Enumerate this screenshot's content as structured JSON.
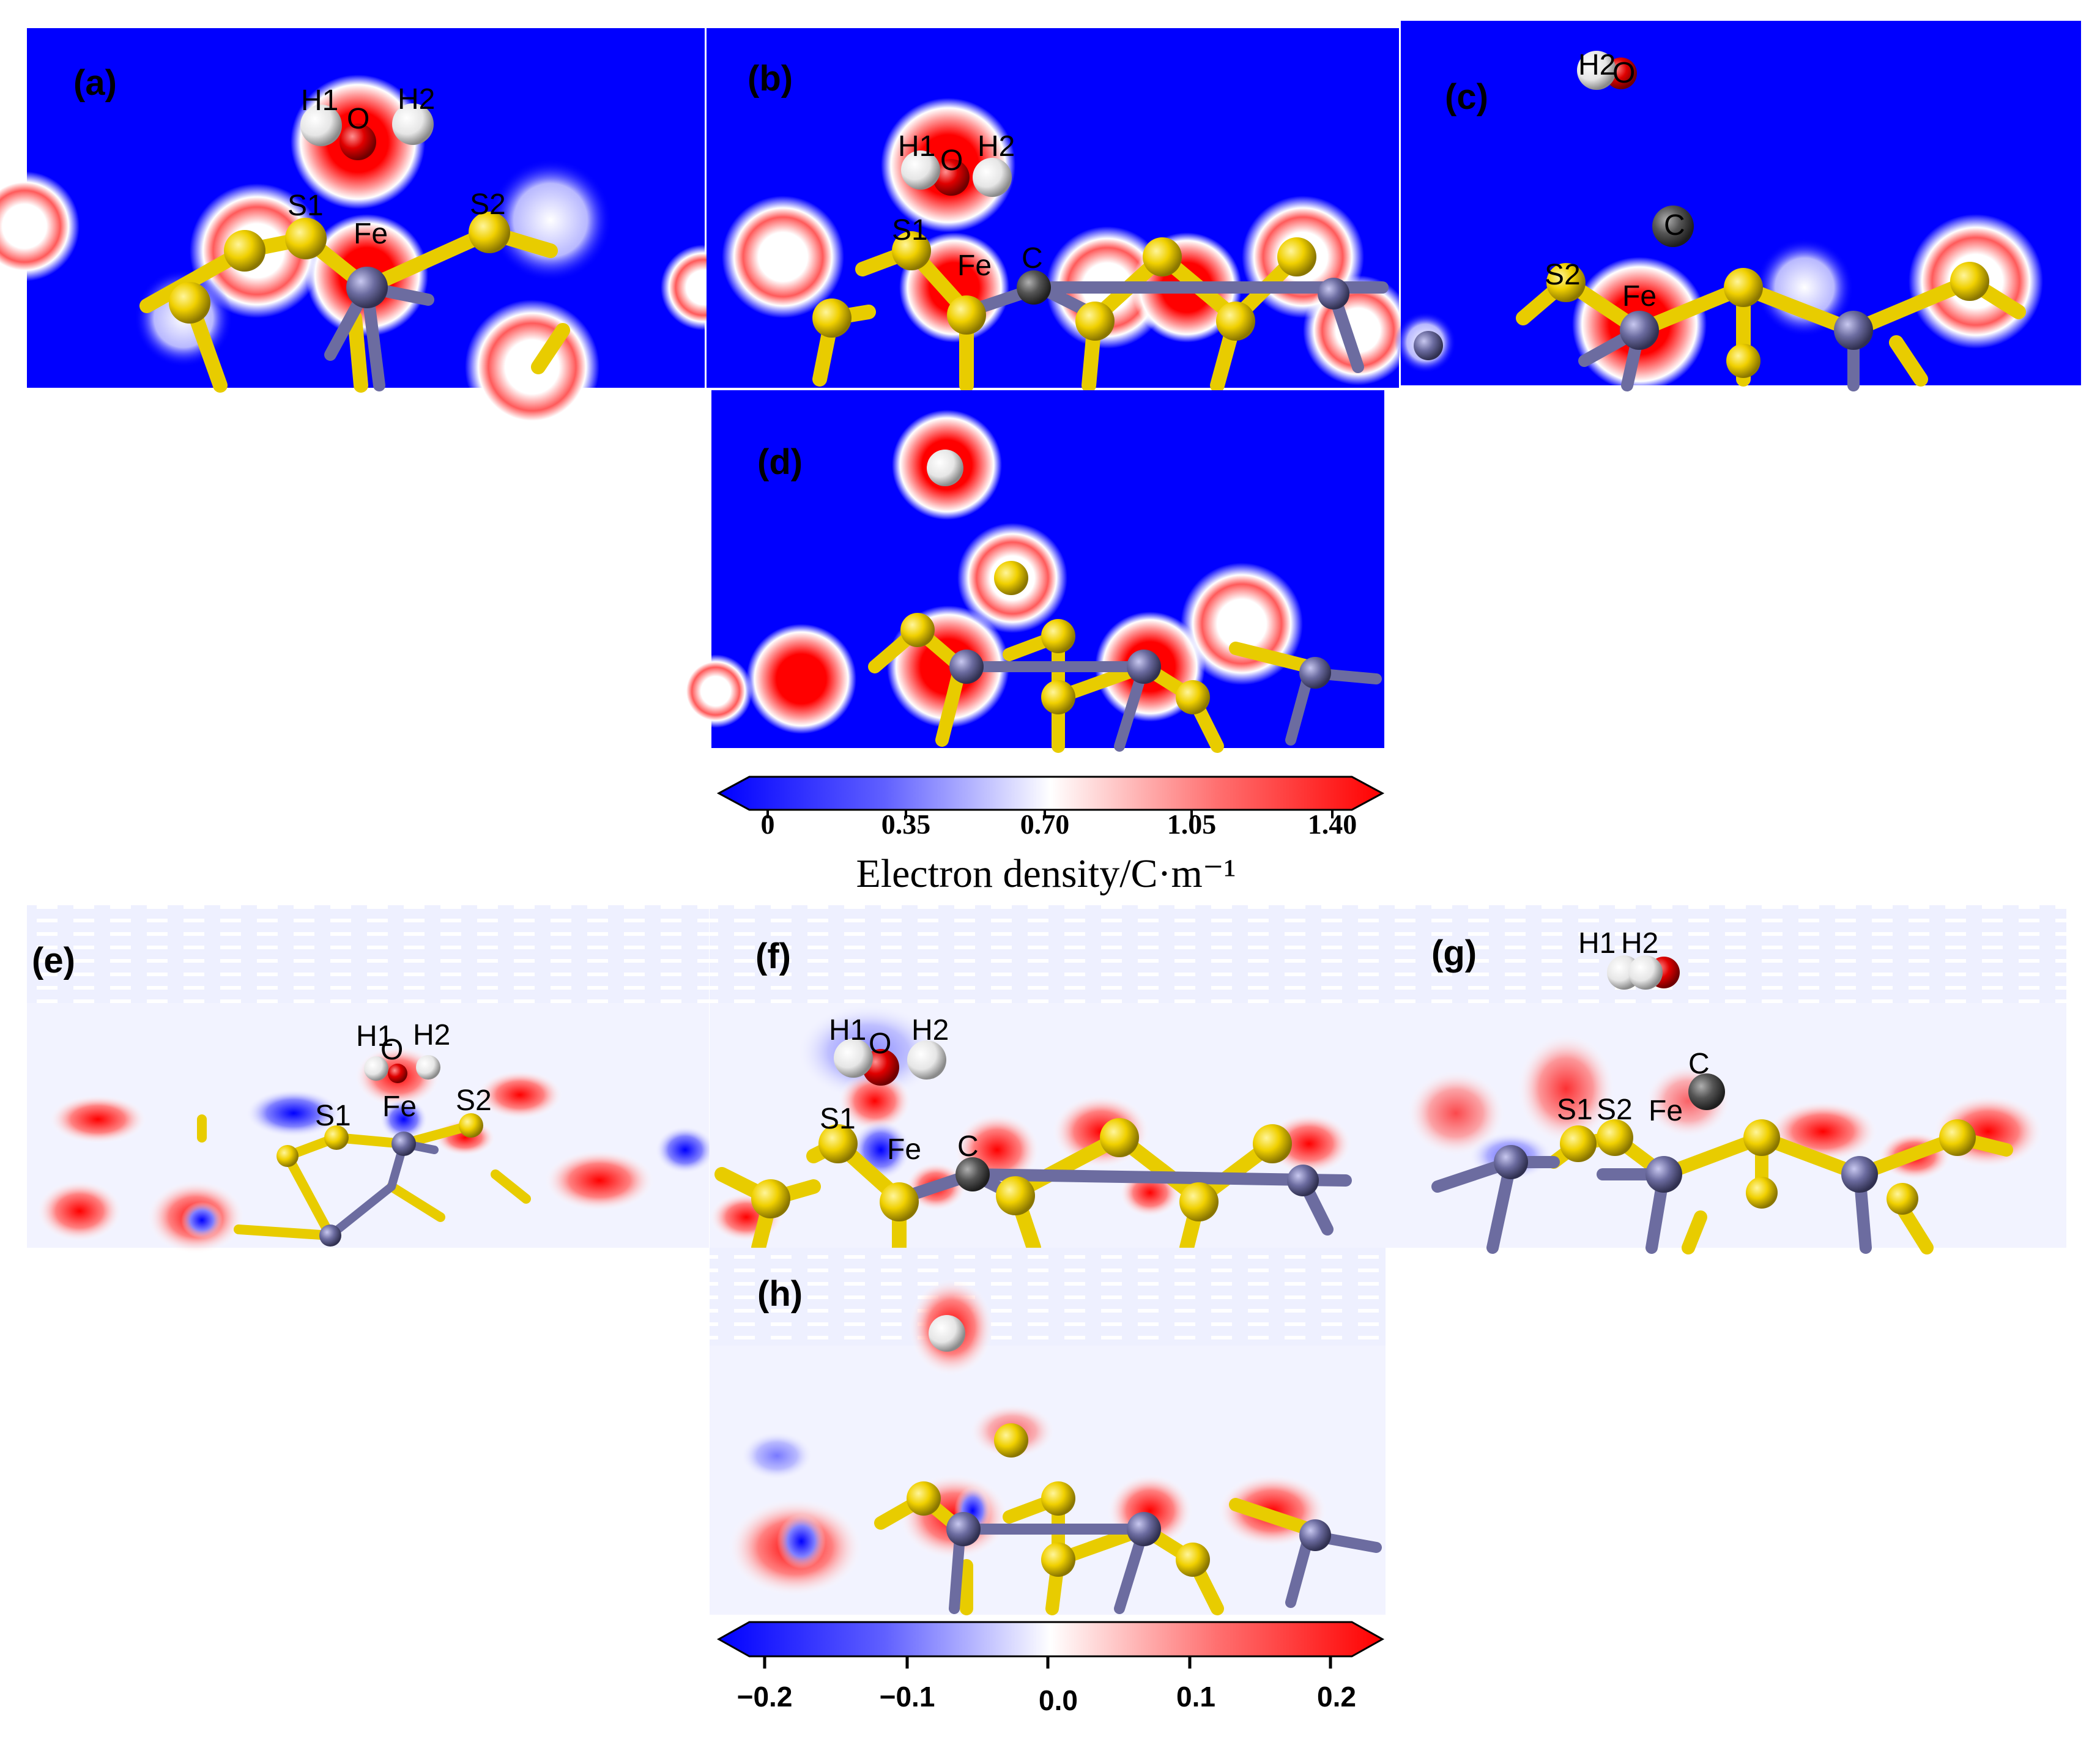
{
  "panels": [
    {
      "id": "a",
      "label": "(a)",
      "atoms": [
        "H1",
        "O",
        "H2",
        "S1",
        "Fe",
        "S2"
      ]
    },
    {
      "id": "b",
      "label": "(b)",
      "atoms": [
        "H1",
        "O",
        "H2",
        "S1",
        "Fe",
        "C"
      ]
    },
    {
      "id": "c",
      "label": "(c)",
      "atoms": [
        "H2",
        "O",
        "C",
        "S2",
        "Fe"
      ]
    },
    {
      "id": "d",
      "label": "(d)",
      "atoms": []
    },
    {
      "id": "e",
      "label": "(e)",
      "atoms": [
        "H1",
        "O",
        "H2",
        "S1",
        "Fe",
        "S2"
      ]
    },
    {
      "id": "f",
      "label": "(f)",
      "atoms": [
        "H1",
        "O",
        "H2",
        "S1",
        "Fe",
        "C"
      ]
    },
    {
      "id": "g",
      "label": "(g)",
      "atoms": [
        "H1",
        "H2",
        "C",
        "S1",
        "S2",
        "Fe"
      ]
    },
    {
      "id": "h",
      "label": "(h)",
      "atoms": []
    }
  ],
  "colorbar_density": {
    "ticks": [
      "0",
      "0.35",
      "0.70",
      "1.05",
      "1.40"
    ],
    "title": "Electron density/C·m⁻¹",
    "colors": [
      "#0000ff",
      "#ffffff",
      "#ff0000"
    ]
  },
  "colorbar_difference": {
    "ticks": [
      "−0.2",
      "−0.1",
      "0.0",
      "0.1",
      "0.2"
    ],
    "colors": [
      "#0000ff",
      "#ffffff",
      "#ff0000"
    ]
  },
  "colors": {
    "sulfur": "#e8cc00",
    "iron": "#6c6ca0",
    "oxygen": "#e00000",
    "hydrogen": "#f2f2f2",
    "carbon": "#555555"
  }
}
